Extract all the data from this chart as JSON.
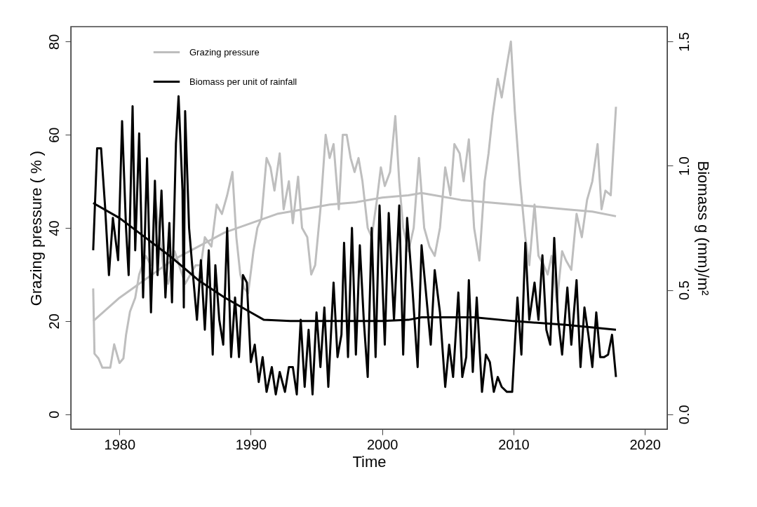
{
  "chart_data": {
    "type": "line",
    "xlabel": "Time",
    "ylabel": "Grazing pressure ( % )",
    "y2label": "Biomass  g (mm)/m²",
    "xlim": [
      1976.3,
      2021.7
    ],
    "xticks": [
      1980,
      1990,
      2000,
      2010,
      2020
    ],
    "ylim": [
      -3.2,
      83.2
    ],
    "yticks": [
      0,
      20,
      40,
      60,
      80
    ],
    "y2lim": [
      -0.06,
      1.56
    ],
    "y2ticks": [
      {
        "value": 0,
        "label": "0.0"
      },
      {
        "value": 0.5,
        "label": "0.5"
      },
      {
        "value": 1,
        "label": "1.0"
      },
      {
        "value": 1.5,
        "label": "1.5"
      }
    ],
    "grid": false,
    "legend": "top left",
    "line_style": "solid",
    "marker": "none",
    "series": [
      {
        "name": "Grazing pressure",
        "color": "#bebebe",
        "x": [
          1978.0,
          1978.1,
          1978.4,
          1978.7,
          1979.3,
          1979.6,
          1980.0,
          1980.3,
          1980.5,
          1980.8,
          1981.2,
          1981.5,
          1982.0,
          1982.4,
          1982.7,
          1983.0,
          1983.4,
          1983.7,
          1984.2,
          1985.0,
          1985.8,
          1986.2,
          1986.5,
          1987.0,
          1987.4,
          1987.8,
          1988.2,
          1988.6,
          1988.9,
          1989.2,
          1989.5,
          1989.8,
          1990.2,
          1990.5,
          1990.8,
          1991.2,
          1991.5,
          1991.8,
          1992.2,
          1992.5,
          1992.9,
          1993.2,
          1993.6,
          1993.9,
          1994.3,
          1994.6,
          1994.9,
          1995.3,
          1995.7,
          1996.0,
          1996.3,
          1996.7,
          1997.0,
          1997.3,
          1997.6,
          1997.9,
          1998.2,
          1998.5,
          1998.9,
          1999.2,
          1999.6,
          1999.9,
          2000.2,
          2000.6,
          2001.0,
          2001.3,
          2001.6,
          2002.0,
          2002.4,
          2002.8,
          2003.2,
          2003.6,
          2004.0,
          2004.4,
          2004.8,
          2005.2,
          2005.5,
          2005.9,
          2006.2,
          2006.6,
          2007.0,
          2007.4,
          2007.8,
          2008.1,
          2008.4,
          2008.8,
          2009.1,
          2009.5,
          2009.8,
          2010.1,
          2010.5,
          2010.9,
          2011.2,
          2011.6,
          2011.9,
          2012.3,
          2012.6,
          2012.9,
          2013.3,
          2013.7,
          2014.0,
          2014.4,
          2014.8,
          2015.2,
          2015.6,
          2016.0,
          2016.4,
          2016.7,
          2017.0,
          2017.4,
          2017.8
        ],
        "values": [
          27,
          13,
          12,
          10,
          10,
          15,
          11,
          12,
          17,
          22,
          25,
          30,
          34,
          32,
          47,
          40,
          30,
          28,
          35,
          28,
          32,
          32,
          38,
          36,
          45,
          43,
          47,
          52,
          38,
          30,
          27,
          26,
          35,
          40,
          42,
          55,
          53,
          48,
          56,
          44,
          50,
          41,
          51,
          40,
          38,
          30,
          32,
          44,
          60,
          55,
          58,
          44,
          60,
          60,
          55,
          52,
          55,
          50,
          40,
          38,
          46,
          53,
          49,
          52,
          64,
          50,
          40,
          35,
          40,
          55,
          40,
          36,
          34,
          40,
          53,
          47,
          58,
          56,
          50,
          59,
          40,
          33,
          50,
          56,
          64,
          72,
          68,
          75,
          80,
          65,
          50,
          38,
          32,
          45,
          34,
          32,
          30,
          34,
          24,
          35,
          33,
          31,
          43,
          38,
          46,
          50,
          58,
          44,
          48,
          47,
          66
        ]
      },
      {
        "color": "#bebebe",
        "x": [
          1978,
          1980,
          1982,
          1984,
          1986,
          1988,
          1990,
          1992,
          1994,
          1996,
          1998,
          2000,
          2002,
          2003,
          2004,
          2006,
          2008,
          2010,
          2012,
          2014,
          2016,
          2017.8
        ],
        "values": [
          20,
          25,
          29,
          33,
          36,
          39,
          41,
          43,
          44,
          45,
          45.5,
          46.5,
          47,
          47.5,
          47,
          46,
          45.5,
          45,
          44.5,
          44,
          43.5,
          42.5
        ]
      },
      {
        "name": "Biomass per unit of rainfall",
        "color": "#000000",
        "axis": "y2",
        "x": [
          1978.0,
          1978.3,
          1978.6,
          1978.9,
          1979.2,
          1979.5,
          1979.9,
          1980.2,
          1980.5,
          1980.7,
          1981.0,
          1981.2,
          1981.5,
          1981.8,
          1982.1,
          1982.4,
          1982.7,
          1982.9,
          1983.2,
          1983.5,
          1983.8,
          1984.0,
          1984.3,
          1984.5,
          1984.8,
          1984.9,
          1985.0,
          1985.3,
          1985.6,
          1985.9,
          1986.2,
          1986.5,
          1986.8,
          1987.1,
          1987.3,
          1987.6,
          1987.9,
          1988.2,
          1988.5,
          1988.8,
          1989.1,
          1989.4,
          1989.7,
          1990.0,
          1990.3,
          1990.6,
          1990.9,
          1991.2,
          1991.6,
          1991.9,
          1992.2,
          1992.6,
          1992.9,
          1993.2,
          1993.5,
          1993.8,
          1994.1,
          1994.4,
          1994.7,
          1995.0,
          1995.3,
          1995.6,
          1995.9,
          1996.3,
          1996.6,
          1996.9,
          1997.1,
          1997.4,
          1997.7,
          1998.0,
          1998.3,
          1998.6,
          1998.9,
          1999.2,
          1999.5,
          1999.8,
          2000.2,
          2000.5,
          2000.9,
          2001.3,
          2001.6,
          2001.9,
          2002.3,
          2002.7,
          2003.0,
          2003.3,
          2003.7,
          2004.0,
          2004.4,
          2004.8,
          2005.1,
          2005.4,
          2005.8,
          2006.1,
          2006.4,
          2006.6,
          2006.9,
          2007.2,
          2007.6,
          2007.9,
          2008.2,
          2008.5,
          2008.8,
          2009.1,
          2009.5,
          2009.9,
          2010.3,
          2010.6,
          2010.9,
          2011.2,
          2011.6,
          2011.9,
          2012.2,
          2012.5,
          2012.8,
          2013.1,
          2013.4,
          2013.7,
          2014.1,
          2014.4,
          2014.8,
          2015.1,
          2015.4,
          2015.7,
          2016.0,
          2016.3,
          2016.6,
          2016.9,
          2017.2,
          2017.5,
          2017.8
        ],
        "values": [
          0.66,
          1.07,
          1.07,
          0.84,
          0.56,
          0.79,
          0.62,
          1.18,
          0.75,
          0.56,
          1.24,
          0.66,
          1.13,
          0.47,
          1.03,
          0.41,
          0.94,
          0.56,
          0.9,
          0.47,
          0.77,
          0.45,
          1.09,
          1.28,
          0.9,
          0.43,
          1.22,
          0.75,
          0.56,
          0.38,
          0.62,
          0.34,
          0.66,
          0.24,
          0.6,
          0.38,
          0.28,
          0.75,
          0.23,
          0.47,
          0.23,
          0.56,
          0.53,
          0.21,
          0.28,
          0.13,
          0.23,
          0.09,
          0.19,
          0.08,
          0.17,
          0.09,
          0.19,
          0.19,
          0.08,
          0.38,
          0.11,
          0.34,
          0.08,
          0.41,
          0.19,
          0.43,
          0.11,
          0.53,
          0.23,
          0.32,
          0.69,
          0.23,
          0.75,
          0.24,
          0.68,
          0.38,
          0.15,
          0.75,
          0.23,
          0.84,
          0.28,
          0.81,
          0.38,
          0.84,
          0.24,
          0.79,
          0.51,
          0.19,
          0.68,
          0.51,
          0.28,
          0.58,
          0.41,
          0.11,
          0.28,
          0.15,
          0.49,
          0.15,
          0.23,
          0.54,
          0.17,
          0.47,
          0.09,
          0.24,
          0.21,
          0.09,
          0.15,
          0.11,
          0.09,
          0.09,
          0.47,
          0.24,
          0.69,
          0.38,
          0.53,
          0.38,
          0.64,
          0.34,
          0.28,
          0.71,
          0.38,
          0.24,
          0.51,
          0.28,
          0.54,
          0.19,
          0.43,
          0.32,
          0.19,
          0.41,
          0.23,
          0.23,
          0.24,
          0.32,
          0.15
        ]
      },
      {
        "color": "#000000",
        "axis": "y2",
        "x": [
          1978,
          1980,
          1982,
          1984,
          1986,
          1988,
          1990,
          1991,
          1993,
          2000,
          2002,
          2003,
          2007,
          2010,
          2014,
          2017.8
        ],
        "values": [
          0.85,
          0.79,
          0.71,
          0.63,
          0.54,
          0.47,
          0.41,
          0.38,
          0.375,
          0.375,
          0.38,
          0.39,
          0.39,
          0.375,
          0.36,
          0.34
        ]
      }
    ]
  }
}
